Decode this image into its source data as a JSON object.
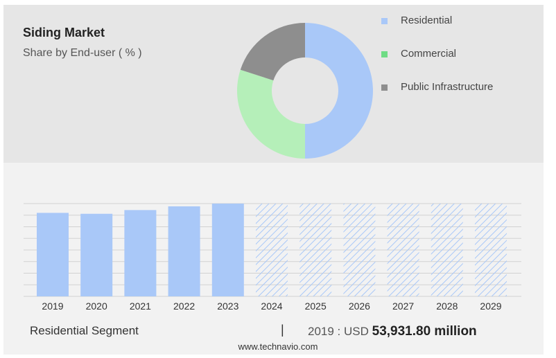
{
  "header": {
    "title": "Siding Market",
    "subtitle": "Share by End-user ( % )"
  },
  "footer": {
    "segment_label": "Residential Segment",
    "divider": "|",
    "value_prefix": "2019 : USD",
    "value_amount": "53,931.80 million",
    "source": "www.technavio.com"
  },
  "colors": {
    "residential": "#a9c8f8",
    "commercial": "#b5efb9",
    "public_infrastructure": "#8e8e8e",
    "legend_commercial": "#6fdc85",
    "forecast_hatch": "#a9c8f8"
  },
  "chart_data": [
    {
      "type": "pie",
      "variant": "donut",
      "title": "Siding Market",
      "subtitle": "Share by End-user ( % )",
      "categories": [
        "Residential",
        "Commercial",
        "Public Infrastructure"
      ],
      "values": [
        50,
        30,
        20
      ],
      "legend_position": "right"
    },
    {
      "type": "bar",
      "categories": [
        "2019",
        "2020",
        "2021",
        "2022",
        "2023",
        "2024",
        "2025",
        "2026",
        "2027",
        "2028",
        "2029"
      ],
      "values": [
        90,
        89,
        93,
        97,
        100,
        100,
        100,
        100,
        100,
        100,
        100
      ],
      "forecast_from": "2024",
      "forecast_style": "hatched",
      "ylim": [
        0,
        100
      ],
      "grid": true,
      "series_name": "Residential Segment"
    }
  ]
}
